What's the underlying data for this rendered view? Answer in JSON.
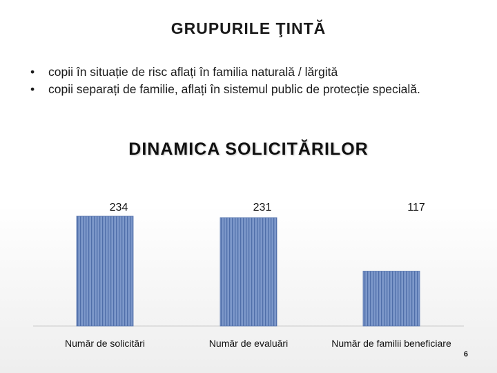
{
  "slide": {
    "title": "GRUPURILE ŢINTĂ",
    "bullets": [
      "copii în situație de risc aflați în familia naturală / lărgită",
      "copii separați de familie, aflați în sistemul  public de protecție specială."
    ],
    "page_number": "6"
  },
  "chart_data": {
    "type": "bar",
    "title": "DINAMICA SOLICITĂRILOR",
    "categories": [
      "Număr de solicitări",
      "Număr de evaluări",
      "Număr de familii beneficiare"
    ],
    "values": [
      234,
      231,
      117
    ],
    "ylim": [
      0,
      234
    ],
    "grid": false,
    "legend": "none",
    "colors": {
      "bar_fill": "#7a96c8",
      "bar_stripe": "#5574ad",
      "axis": "#c8c8c8"
    }
  }
}
